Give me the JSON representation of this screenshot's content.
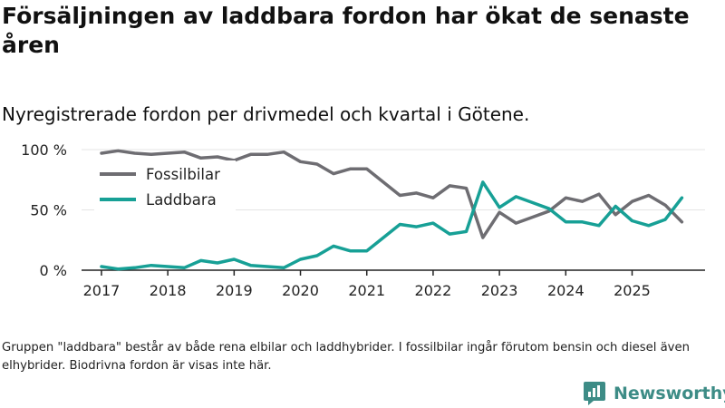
{
  "title": "Försäljningen av laddbara fordon har ökat de senaste åren",
  "subtitle": "Nyregistrerade fordon per drivmedel och kvartal i Götene.",
  "note": "Gruppen \"laddbara\" består av både rena elbilar och laddhybrider. I fossilbilar ingår förutom bensin och diesel även elhybrider. Biodrivna fordon är visas inte här.",
  "brand": {
    "name": "Newsworthy"
  },
  "colors": {
    "fossil": "#6e6d72",
    "laddbara": "#17a096",
    "grid": "#e4e4e4",
    "axis": "#222222"
  },
  "chart_data": {
    "type": "line",
    "title": "Försäljningen av laddbara fordon har ökat de senaste åren",
    "subtitle": "Nyregistrerade fordon per drivmedel och kvartal i Götene.",
    "xlabel": "",
    "ylabel": "",
    "ylim": [
      0,
      100
    ],
    "yticks": [
      {
        "value": 0,
        "label": "0 %"
      },
      {
        "value": 50,
        "label": "50 %"
      },
      {
        "value": 100,
        "label": "100 %"
      }
    ],
    "xticks": [
      {
        "value": 2017,
        "label": "2017"
      },
      {
        "value": 2018,
        "label": "2018"
      },
      {
        "value": 2019,
        "label": "2019"
      },
      {
        "value": 2020,
        "label": "2020"
      },
      {
        "value": 2021,
        "label": "2021"
      },
      {
        "value": 2022,
        "label": "2022"
      },
      {
        "value": 2023,
        "label": "2023"
      },
      {
        "value": 2024,
        "label": "2024"
      },
      {
        "value": 2025,
        "label": "2025"
      }
    ],
    "legend_position": "top-left",
    "x": [
      2017.0,
      2017.25,
      2017.5,
      2017.75,
      2018.0,
      2018.25,
      2018.5,
      2018.75,
      2019.0,
      2019.25,
      2019.5,
      2019.75,
      2020.0,
      2020.25,
      2020.5,
      2020.75,
      2021.0,
      2021.25,
      2021.5,
      2021.75,
      2022.0,
      2022.25,
      2022.5,
      2022.75,
      2023.0,
      2023.25,
      2023.5,
      2023.75,
      2024.0,
      2024.25,
      2024.5,
      2024.75,
      2025.0,
      2025.25,
      2025.5,
      2025.75
    ],
    "series": [
      {
        "name": "Fossilbilar",
        "color": "#6e6d72",
        "values": [
          97,
          99,
          97,
          96,
          97,
          98,
          93,
          94,
          91,
          96,
          96,
          98,
          90,
          88,
          80,
          84,
          84,
          73,
          62,
          64,
          60,
          70,
          68,
          27,
          48,
          39,
          44,
          49,
          60,
          57,
          63,
          46,
          57,
          62,
          54,
          40
        ]
      },
      {
        "name": "Laddbara",
        "color": "#17a096",
        "values": [
          3,
          1,
          2,
          4,
          3,
          2,
          8,
          6,
          9,
          4,
          3,
          2,
          9,
          12,
          20,
          16,
          16,
          27,
          38,
          36,
          39,
          30,
          32,
          73,
          52,
          61,
          56,
          51,
          40,
          40,
          37,
          53,
          41,
          37,
          42,
          60
        ]
      }
    ]
  }
}
